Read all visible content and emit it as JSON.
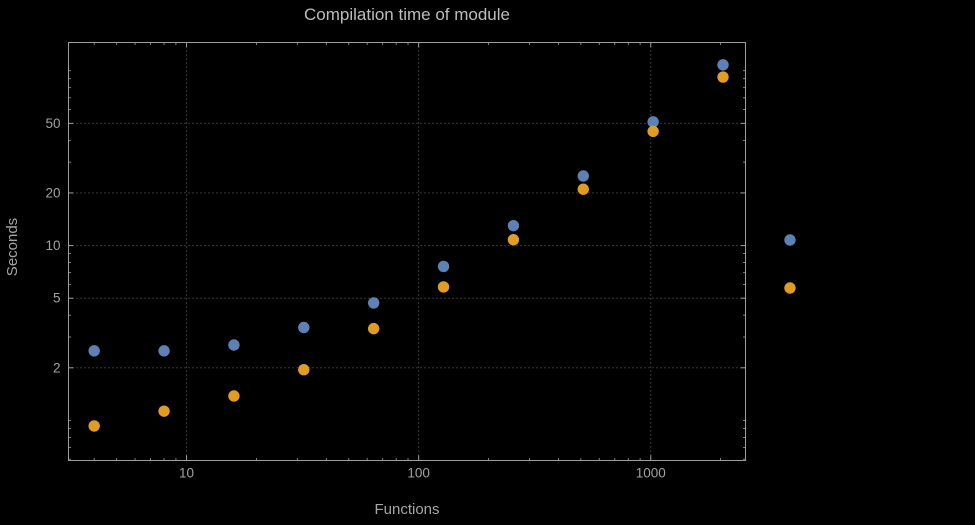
{
  "title": "Compilation time of module",
  "colors": {
    "background": "#000000",
    "frame": "#9e9e9e",
    "grid": "#6e6e6e",
    "tick_text": "#a2a2a2",
    "title_text": "#bdbdbd",
    "series_blue": "#5e81b5",
    "series_orange": "#e19c24"
  },
  "chart_data": {
    "type": "scatter",
    "title": "Compilation time of module",
    "xlabel": "Functions",
    "ylabel": "Seconds",
    "x_scale": "log",
    "y_scale": "log",
    "xlim": [
      3.1,
      2560
    ],
    "ylim": [
      0.59,
      145
    ],
    "grid": true,
    "grid_style": "dotted",
    "x_ticks": [
      10,
      100,
      1000
    ],
    "x_tick_labels": [
      "10",
      "100",
      "1000"
    ],
    "x_minor_ticks": [
      4,
      5,
      6,
      7,
      8,
      9,
      20,
      30,
      40,
      50,
      60,
      70,
      80,
      90,
      200,
      300,
      400,
      500,
      600,
      700,
      800,
      900,
      2000
    ],
    "y_ticks": [
      2,
      5,
      10,
      20,
      50
    ],
    "y_tick_labels": [
      "2",
      "5",
      "10",
      "20",
      "50"
    ],
    "y_minor_ticks": [
      0.6,
      0.7,
      0.8,
      0.9,
      1,
      3,
      4,
      6,
      7,
      8,
      9,
      30,
      40,
      60,
      70,
      80,
      90,
      100
    ],
    "x": [
      4,
      8,
      16,
      32,
      64,
      128,
      256,
      512,
      1024,
      2048
    ],
    "series": [
      {
        "name": "blue",
        "color": "#5e81b5",
        "values": [
          2.5,
          2.5,
          2.7,
          3.4,
          4.7,
          7.6,
          13,
          25,
          51,
          108
        ]
      },
      {
        "name": "orange",
        "color": "#e19c24",
        "values": [
          0.93,
          1.13,
          1.38,
          1.95,
          3.35,
          5.8,
          10.8,
          21,
          45,
          92
        ]
      }
    ],
    "legend": {
      "position": "right-outside",
      "items": [
        {
          "color": "#5e81b5",
          "label": ""
        },
        {
          "color": "#e19c24",
          "label": ""
        }
      ]
    }
  }
}
